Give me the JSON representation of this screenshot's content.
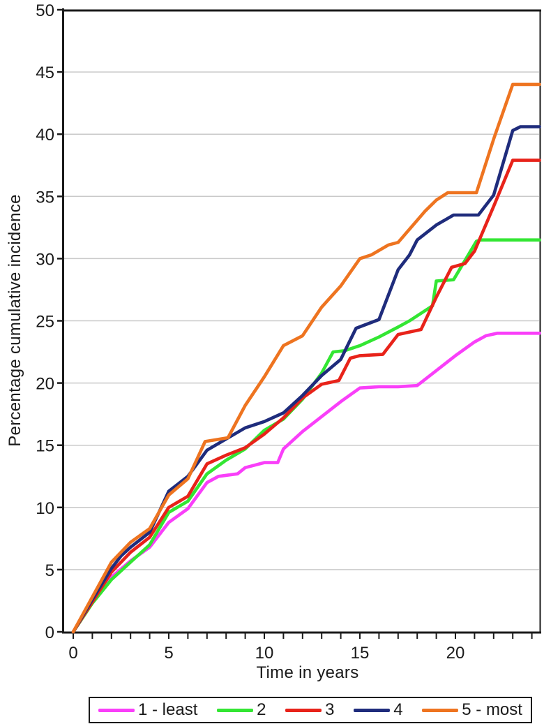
{
  "chart": {
    "y_tick_labels": [
      "0",
      "5",
      "10",
      "15",
      "20",
      "25",
      "30",
      "35",
      "40",
      "45",
      "50"
    ],
    "x_tick_labels": [
      "0",
      "5",
      "10",
      "15",
      "20"
    ]
  },
  "chart_data": {
    "type": "line",
    "title": "",
    "xlabel": "Time in years",
    "ylabel": "Percentage cumulative incidence",
    "xlim": [
      0,
      24.5
    ],
    "ylim": [
      0,
      50
    ],
    "x_major_ticks": [
      0,
      5,
      10,
      15,
      20
    ],
    "x_minor_tick_step": 1,
    "y_ticks": [
      0,
      5,
      10,
      15,
      20,
      25,
      30,
      35,
      40,
      45,
      50
    ],
    "grid": "horizontal-lightgray",
    "legend_position": "bottom",
    "frame_color": "#1a1a1a",
    "grid_color": "#c9c9c9",
    "series": [
      {
        "name": "1 - least",
        "color": "#F93FF9",
        "points": [
          [
            0,
            0
          ],
          [
            1,
            2.4
          ],
          [
            2,
            4.4
          ],
          [
            3,
            5.7
          ],
          [
            4,
            6.8
          ],
          [
            5,
            8.8
          ],
          [
            6,
            9.9
          ],
          [
            7,
            12.0
          ],
          [
            7.6,
            12.5
          ],
          [
            8.6,
            12.7
          ],
          [
            9,
            13.2
          ],
          [
            10,
            13.6
          ],
          [
            10.7,
            13.6
          ],
          [
            11,
            14.7
          ],
          [
            12,
            16.1
          ],
          [
            13,
            17.3
          ],
          [
            14,
            18.5
          ],
          [
            15,
            19.6
          ],
          [
            16,
            19.7
          ],
          [
            17,
            19.7
          ],
          [
            18,
            19.8
          ],
          [
            19,
            21.0
          ],
          [
            20,
            22.2
          ],
          [
            21,
            23.3
          ],
          [
            21.6,
            23.8
          ],
          [
            22.2,
            24.0
          ],
          [
            24.4,
            24.0
          ]
        ]
      },
      {
        "name": "2",
        "color": "#33E633",
        "points": [
          [
            0,
            0
          ],
          [
            1,
            2.3
          ],
          [
            2,
            4.2
          ],
          [
            3,
            5.6
          ],
          [
            4,
            7.0
          ],
          [
            5,
            9.6
          ],
          [
            6,
            10.5
          ],
          [
            7,
            12.7
          ],
          [
            8,
            13.8
          ],
          [
            9,
            14.7
          ],
          [
            10,
            16.2
          ],
          [
            11,
            17.1
          ],
          [
            12,
            18.7
          ],
          [
            13,
            20.8
          ],
          [
            13.6,
            22.5
          ],
          [
            14.2,
            22.6
          ],
          [
            15,
            23.0
          ],
          [
            16,
            23.7
          ],
          [
            17,
            24.5
          ],
          [
            17.6,
            25.0
          ],
          [
            18.8,
            26.2
          ],
          [
            19,
            28.2
          ],
          [
            19.9,
            28.3
          ],
          [
            21.1,
            31.4
          ],
          [
            21.3,
            31.5
          ],
          [
            24.4,
            31.5
          ]
        ]
      },
      {
        "name": "3",
        "color": "#E8231A",
        "points": [
          [
            0,
            0
          ],
          [
            1,
            2.4
          ],
          [
            2,
            4.8
          ],
          [
            3,
            6.4
          ],
          [
            4,
            7.6
          ],
          [
            5,
            10.0
          ],
          [
            6,
            10.9
          ],
          [
            7,
            13.5
          ],
          [
            8,
            14.2
          ],
          [
            9,
            14.8
          ],
          [
            10,
            15.9
          ],
          [
            11,
            17.2
          ],
          [
            12,
            18.8
          ],
          [
            13,
            19.9
          ],
          [
            13.9,
            20.2
          ],
          [
            14.5,
            22.0
          ],
          [
            15,
            22.2
          ],
          [
            16.2,
            22.3
          ],
          [
            17,
            23.9
          ],
          [
            18.2,
            24.3
          ],
          [
            19,
            26.9
          ],
          [
            19.8,
            29.3
          ],
          [
            20.5,
            29.6
          ],
          [
            21,
            30.6
          ],
          [
            22,
            34.2
          ],
          [
            23,
            37.9
          ],
          [
            24.4,
            37.9
          ]
        ]
      },
      {
        "name": "4",
        "color": "#1F2C7C",
        "points": [
          [
            0,
            0
          ],
          [
            1,
            2.6
          ],
          [
            2,
            5.1
          ],
          [
            2.5,
            6.1
          ],
          [
            3,
            6.8
          ],
          [
            4,
            8.0
          ],
          [
            5,
            11.3
          ],
          [
            6,
            12.5
          ],
          [
            7,
            14.6
          ],
          [
            8,
            15.5
          ],
          [
            9,
            16.4
          ],
          [
            10,
            16.9
          ],
          [
            11,
            17.6
          ],
          [
            12,
            19.0
          ],
          [
            13,
            20.6
          ],
          [
            14,
            21.9
          ],
          [
            14.8,
            24.4
          ],
          [
            16,
            25.1
          ],
          [
            17,
            29.1
          ],
          [
            17.6,
            30.3
          ],
          [
            18,
            31.5
          ],
          [
            19,
            32.7
          ],
          [
            19.9,
            33.5
          ],
          [
            21.2,
            33.5
          ],
          [
            22,
            35.1
          ],
          [
            23,
            40.3
          ],
          [
            23.4,
            40.6
          ],
          [
            24.4,
            40.6
          ]
        ]
      },
      {
        "name": "5 - most",
        "color": "#EE7420",
        "points": [
          [
            0,
            0
          ],
          [
            1,
            2.8
          ],
          [
            2,
            5.6
          ],
          [
            3,
            7.2
          ],
          [
            4,
            8.3
          ],
          [
            5,
            11.0
          ],
          [
            6,
            12.3
          ],
          [
            6.9,
            15.3
          ],
          [
            8.1,
            15.6
          ],
          [
            9,
            18.2
          ],
          [
            10,
            20.5
          ],
          [
            11,
            23.0
          ],
          [
            12,
            23.8
          ],
          [
            13,
            26.1
          ],
          [
            14,
            27.8
          ],
          [
            15,
            30.0
          ],
          [
            15.6,
            30.3
          ],
          [
            16.5,
            31.1
          ],
          [
            17,
            31.3
          ],
          [
            18.4,
            33.8
          ],
          [
            19,
            34.7
          ],
          [
            19.6,
            35.3
          ],
          [
            21.1,
            35.3
          ],
          [
            22,
            39.6
          ],
          [
            23,
            44.0
          ],
          [
            24.4,
            44.0
          ]
        ]
      }
    ]
  }
}
